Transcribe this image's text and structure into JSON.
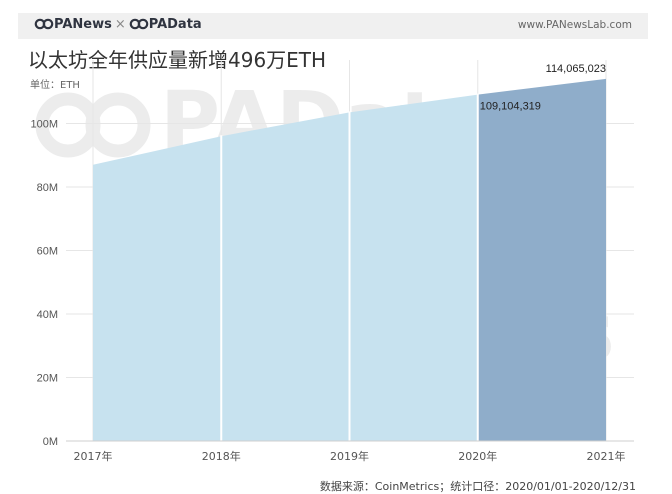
{
  "header": {
    "brand_left": "PANews",
    "brand_sep": "×",
    "brand_right": "PAData",
    "url": "www.PANewsLab.com"
  },
  "title": "以太坊全年供应量新增496万ETH",
  "unit_label": "单位：ETH",
  "source": "数据来源：CoinMetrics；统计口径：2020/01/01-2020/12/31",
  "watermarks": [
    "PAData",
    "PANews"
  ],
  "chart_data": {
    "type": "area",
    "title": "以太坊全年供应量新增496万ETH",
    "ylabel": "单位：ETH",
    "x": [
      "2017年",
      "2018年",
      "2019年",
      "2020年",
      "2021年"
    ],
    "values": [
      87000000,
      96000000,
      103500000,
      109104319,
      114065023
    ],
    "ylim": [
      0,
      120000000
    ],
    "yticks": [
      0,
      20000000,
      40000000,
      60000000,
      80000000,
      100000000
    ],
    "ytick_labels": [
      "0M",
      "20M",
      "40M",
      "60M",
      "80M",
      "100M"
    ],
    "highlight_segment": {
      "from": "2020年",
      "to": "2021年"
    },
    "annotations": [
      {
        "x": "2020年",
        "value": 109104319,
        "label": "109,104,319"
      },
      {
        "x": "2021年",
        "value": 114065023,
        "label": "114,065,023"
      }
    ],
    "grid": true,
    "colors": {
      "area": "#c7e2ef",
      "highlight": "#8fadca",
      "grid": "#e6e6e6",
      "divider": "#ffffff"
    }
  }
}
